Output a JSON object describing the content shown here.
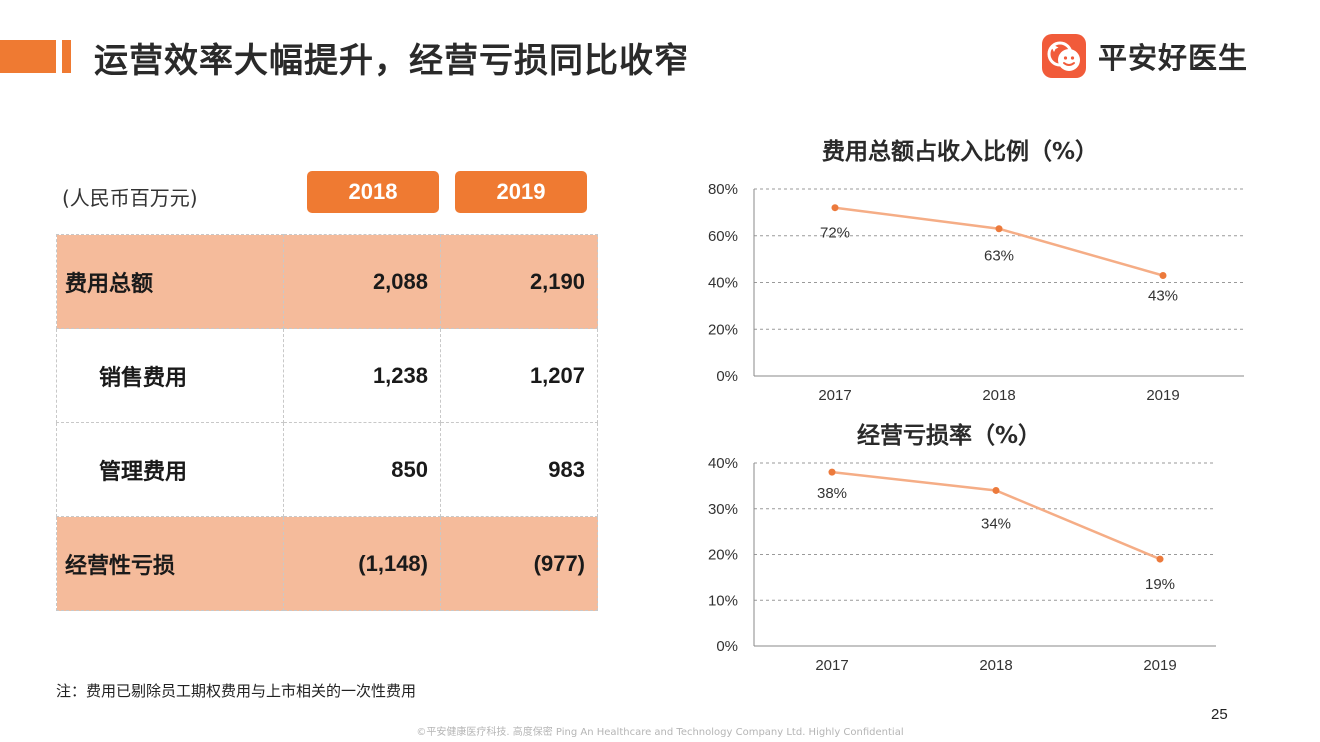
{
  "header": {
    "title": "运营效率大幅提升，经营亏损同比收窄",
    "logo_text": "平安好医生",
    "logo_color": "#f15b3a"
  },
  "table": {
    "unit": "(人民币百万元)",
    "years": [
      "2018",
      "2019"
    ],
    "rows": [
      {
        "label": "费用总额",
        "v2018": "2,088",
        "v2019": "2,190"
      },
      {
        "label": "销售费用",
        "v2018": "1,238",
        "v2019": "1,207"
      },
      {
        "label": "管理费用",
        "v2018": "850",
        "v2019": "983"
      },
      {
        "label": "经营性亏损",
        "v2018": "(1,148)",
        "v2019": "(977)"
      }
    ]
  },
  "note": "注：费用已剔除员工期权费用与上市相关的一次性费用",
  "page_number": "25",
  "footer": "©平安健康医疗科技. 高度保密 Ping An Healthcare and Technology Company Ltd. Highly Confidential",
  "colors": {
    "accent": "#ef7a32",
    "highlight_row": "#f5bb9b",
    "line": "#f5ad86",
    "marker": "#ec7a3c"
  },
  "chart_data": [
    {
      "type": "line",
      "title": "费用总额占收入比例（%）",
      "categories": [
        "2017",
        "2018",
        "2019"
      ],
      "values": [
        72,
        63,
        43
      ],
      "data_labels": [
        "72%",
        "63%",
        "43%"
      ],
      "yticks": [
        "0%",
        "20%",
        "40%",
        "60%",
        "80%"
      ],
      "ylim": [
        0,
        80
      ],
      "grid": true
    },
    {
      "type": "line",
      "title": "经营亏损率（%）",
      "categories": [
        "2017",
        "2018",
        "2019"
      ],
      "values": [
        38,
        34,
        19
      ],
      "data_labels": [
        "38%",
        "34%",
        "19%"
      ],
      "yticks": [
        "0%",
        "10%",
        "20%",
        "30%",
        "40%"
      ],
      "ylim": [
        0,
        40
      ],
      "grid": true
    }
  ]
}
